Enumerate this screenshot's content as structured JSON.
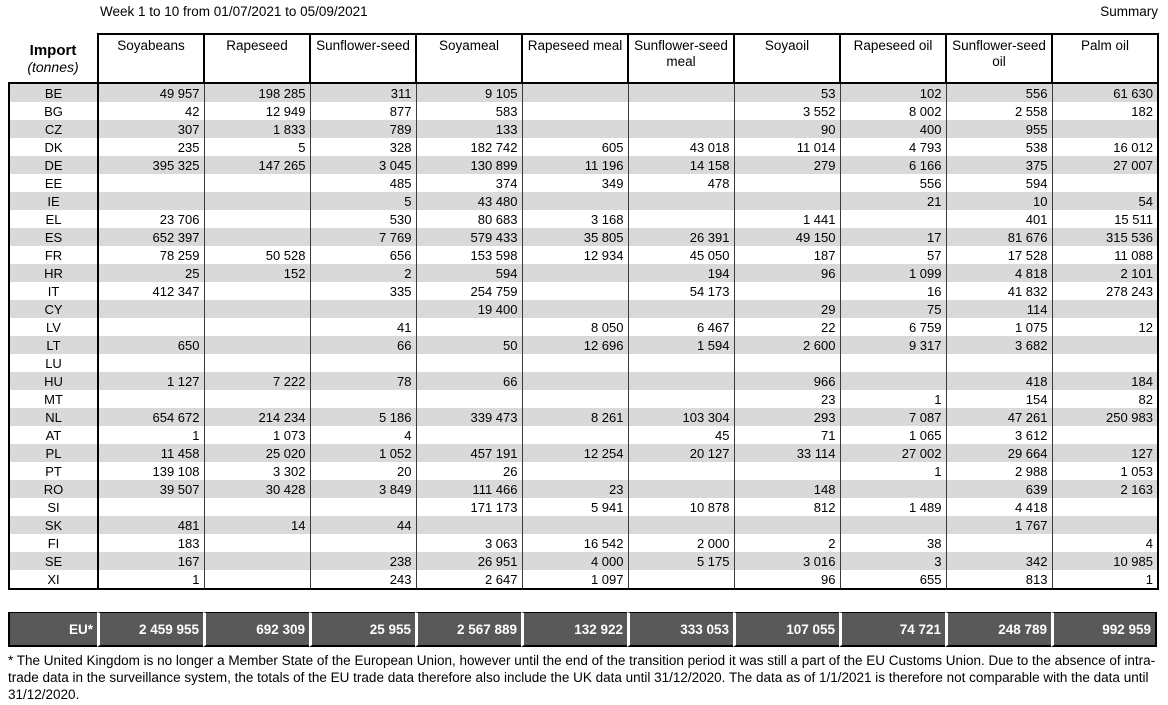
{
  "page": {
    "title_left": "Week 1 to 10 from 01/07/2021 to 05/09/2021",
    "title_right": "Summary"
  },
  "table": {
    "corner": {
      "line1": "Import",
      "line2": "(tonnes)"
    },
    "columns": [
      "Soyabeans",
      "Rapeseed",
      "Sunflower-seed",
      "Soyameal",
      "Rapeseed meal",
      "Sunflower-seed meal",
      "Soyaoil",
      "Rapeseed oil",
      "Sunflower-seed oil",
      "Palm oil"
    ],
    "rows": [
      {
        "code": "BE",
        "values": [
          "49 957",
          "198 285",
          "311",
          "9 105",
          "",
          "",
          "53",
          "102",
          "556",
          "61 630"
        ]
      },
      {
        "code": "BG",
        "values": [
          "42",
          "12 949",
          "877",
          "583",
          "",
          "",
          "3 552",
          "8 002",
          "2 558",
          "182"
        ]
      },
      {
        "code": "CZ",
        "values": [
          "307",
          "1 833",
          "789",
          "133",
          "",
          "",
          "90",
          "400",
          "955",
          ""
        ]
      },
      {
        "code": "DK",
        "values": [
          "235",
          "5",
          "328",
          "182 742",
          "605",
          "43 018",
          "11 014",
          "4 793",
          "538",
          "16 012"
        ]
      },
      {
        "code": "DE",
        "values": [
          "395 325",
          "147 265",
          "3 045",
          "130 899",
          "11 196",
          "14 158",
          "279",
          "6 166",
          "375",
          "27 007"
        ]
      },
      {
        "code": "EE",
        "values": [
          "",
          "",
          "485",
          "374",
          "349",
          "478",
          "",
          "556",
          "594",
          ""
        ]
      },
      {
        "code": "IE",
        "values": [
          "",
          "",
          "5",
          "43 480",
          "",
          "",
          "",
          "21",
          "10",
          "54"
        ]
      },
      {
        "code": "EL",
        "values": [
          "23 706",
          "",
          "530",
          "80 683",
          "3 168",
          "",
          "1 441",
          "",
          "401",
          "15 511"
        ]
      },
      {
        "code": "ES",
        "values": [
          "652 397",
          "",
          "7 769",
          "579 433",
          "35 805",
          "26 391",
          "49 150",
          "17",
          "81 676",
          "315 536"
        ]
      },
      {
        "code": "FR",
        "values": [
          "78 259",
          "50 528",
          "656",
          "153 598",
          "12 934",
          "45 050",
          "187",
          "57",
          "17 528",
          "11 088"
        ]
      },
      {
        "code": "HR",
        "values": [
          "25",
          "152",
          "2",
          "594",
          "",
          "194",
          "96",
          "1 099",
          "4 818",
          "2 101"
        ]
      },
      {
        "code": "IT",
        "values": [
          "412 347",
          "",
          "335",
          "254 759",
          "",
          "54 173",
          "",
          "16",
          "41 832",
          "278 243"
        ]
      },
      {
        "code": "CY",
        "values": [
          "",
          "",
          "",
          "19 400",
          "",
          "",
          "29",
          "75",
          "114",
          ""
        ]
      },
      {
        "code": "LV",
        "values": [
          "",
          "",
          "41",
          "",
          "8 050",
          "6 467",
          "22",
          "6 759",
          "1 075",
          "12"
        ]
      },
      {
        "code": "LT",
        "values": [
          "650",
          "",
          "66",
          "50",
          "12 696",
          "1 594",
          "2 600",
          "9 317",
          "3 682",
          ""
        ]
      },
      {
        "code": "LU",
        "values": [
          "",
          "",
          "",
          "",
          "",
          "",
          "",
          "",
          "",
          ""
        ]
      },
      {
        "code": "HU",
        "values": [
          "1 127",
          "7 222",
          "78",
          "66",
          "",
          "",
          "966",
          "",
          "418",
          "184"
        ]
      },
      {
        "code": "MT",
        "values": [
          "",
          "",
          "",
          "",
          "",
          "",
          "23",
          "1",
          "154",
          "82"
        ]
      },
      {
        "code": "NL",
        "values": [
          "654 672",
          "214 234",
          "5 186",
          "339 473",
          "8 261",
          "103 304",
          "293",
          "7 087",
          "47 261",
          "250 983"
        ]
      },
      {
        "code": "AT",
        "values": [
          "1",
          "1 073",
          "4",
          "",
          "",
          "45",
          "71",
          "1 065",
          "3 612",
          ""
        ]
      },
      {
        "code": "PL",
        "values": [
          "11 458",
          "25 020",
          "1 052",
          "457 191",
          "12 254",
          "20 127",
          "33 114",
          "27 002",
          "29 664",
          "127"
        ]
      },
      {
        "code": "PT",
        "values": [
          "139 108",
          "3 302",
          "20",
          "26",
          "",
          "",
          "",
          "1",
          "2 988",
          "1 053"
        ]
      },
      {
        "code": "RO",
        "values": [
          "39 507",
          "30 428",
          "3 849",
          "111 466",
          "23",
          "",
          "148",
          "",
          "639",
          "2 163"
        ]
      },
      {
        "code": "SI",
        "values": [
          "",
          "",
          "",
          "171 173",
          "5 941",
          "10 878",
          "812",
          "1 489",
          "4 418",
          ""
        ]
      },
      {
        "code": "SK",
        "values": [
          "481",
          "14",
          "44",
          "",
          "",
          "",
          "",
          "",
          "1 767",
          ""
        ]
      },
      {
        "code": "FI",
        "values": [
          "183",
          "",
          "",
          "3 063",
          "16 542",
          "2 000",
          "2",
          "38",
          "",
          "4"
        ]
      },
      {
        "code": "SE",
        "values": [
          "167",
          "",
          "238",
          "26 951",
          "4 000",
          "5 175",
          "3 016",
          "3",
          "342",
          "10 985"
        ]
      },
      {
        "code": "XI",
        "values": [
          "1",
          "",
          "243",
          "2 647",
          "1 097",
          "",
          "96",
          "655",
          "813",
          "1"
        ]
      }
    ],
    "totals": {
      "label": "EU*",
      "values": [
        "2 459 955",
        "692 309",
        "25 955",
        "2 567 889",
        "132 922",
        "333 053",
        "107 055",
        "74 721",
        "248 789",
        "992 959"
      ]
    }
  },
  "footnote": {
    "text": "* The United Kingdom is no longer a Member State of the European Union, however until the end of the transition period it was still a part of the EU Customs Union. Due to the absence of intra-trade data in the surveillance system, the totals of the EU trade data  therefore also include the UK data until 31/12/2020. The data as of 1/1/2021 is therefore not comparable with the data until 31/12/2020."
  },
  "colors": {
    "row_shade": "#d9d9d9",
    "totals_background": "#595959",
    "border": "#000000"
  }
}
